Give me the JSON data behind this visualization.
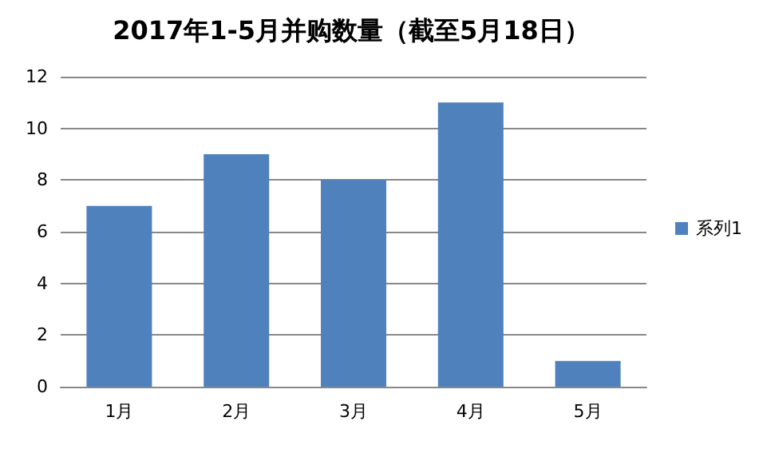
{
  "chart_data": {
    "type": "bar",
    "title": "2017年1-5月并购数量（截至5月18日）",
    "categories": [
      "1月",
      "2月",
      "3月",
      "4月",
      "5月"
    ],
    "series": [
      {
        "name": "系列1",
        "color": "#4f81bd",
        "values": [
          7,
          9,
          8,
          11,
          1
        ]
      }
    ],
    "ylim": [
      0,
      12
    ],
    "yticks": [
      0,
      2,
      4,
      6,
      8,
      10,
      12
    ],
    "grid": "y",
    "legend": "right"
  }
}
